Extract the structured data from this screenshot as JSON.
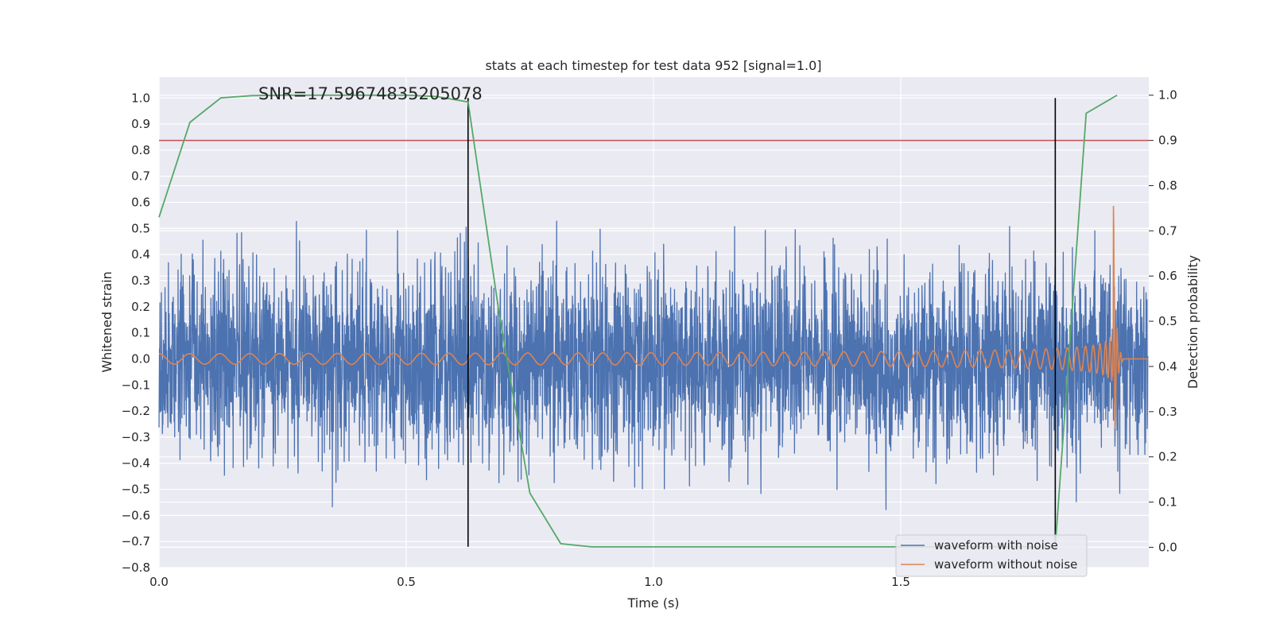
{
  "chart_data": {
    "type": "line",
    "title": "stats at each timestep for test data 952 [signal=1.0]",
    "annotation": "SNR=17.59674835205078",
    "xlabel": "Time (s)",
    "ylabel": "Whitened strain",
    "ylabel_right": "Detection probability",
    "xlim": [
      0.0,
      2.0
    ],
    "ylim": [
      -0.8,
      1.08
    ],
    "ylim_right": [
      -0.045,
      1.04
    ],
    "x_ticks": [
      0.0,
      0.5,
      1.0,
      1.5
    ],
    "x_tick_labels": [
      "0.0",
      "0.5",
      "1.0",
      "1.5"
    ],
    "y_ticks": [
      -0.8,
      -0.7,
      -0.6,
      -0.5,
      -0.4,
      -0.3,
      -0.2,
      -0.1,
      0.0,
      0.1,
      0.2,
      0.3,
      0.4,
      0.5,
      0.6,
      0.7,
      0.8,
      0.9,
      1.0
    ],
    "y_tick_labels": [
      "−0.8",
      "−0.7",
      "−0.6",
      "−0.5",
      "−0.4",
      "−0.3",
      "−0.2",
      "−0.1",
      "0.0",
      "0.1",
      "0.2",
      "0.3",
      "0.4",
      "0.5",
      "0.6",
      "0.7",
      "0.8",
      "0.9",
      "1.0"
    ],
    "y_right_ticks": [
      0.0,
      0.1,
      0.2,
      0.3,
      0.4,
      0.5,
      0.6,
      0.7,
      0.8,
      0.9,
      1.0
    ],
    "y_right_tick_labels": [
      "0.0",
      "0.1",
      "0.2",
      "0.3",
      "0.4",
      "0.5",
      "0.6",
      "0.7",
      "0.8",
      "0.9",
      "1.0"
    ],
    "grid": true,
    "legend_position": "lower-right",
    "series": [
      {
        "name": "waveform with noise",
        "color": "#4c72b0",
        "kind": "noise",
        "sample_rate": 2048,
        "duration": 2.0,
        "std": 0.18,
        "range": [
          -0.71,
          0.73
        ]
      },
      {
        "name": "waveform without noise",
        "color": "#dd8452",
        "kind": "chirp",
        "merger_time": 1.93,
        "base_amplitude": 0.02,
        "peak_amplitude": 0.62,
        "base_frequency": 16,
        "ringdown_end": 1.95
      },
      {
        "name": "",
        "color": "#55a868",
        "axis": "right",
        "x": [
          0.0,
          0.0625,
          0.125,
          0.1875,
          0.25,
          0.3125,
          0.375,
          0.4375,
          0.5,
          0.5625,
          0.625,
          0.6875,
          0.75,
          0.8125,
          0.875,
          0.9375,
          1.0,
          1.0625,
          1.125,
          1.1875,
          1.25,
          1.3125,
          1.375,
          1.4375,
          1.5,
          1.5625,
          1.625,
          1.6875,
          1.75,
          1.8125,
          1.875,
          1.9375
        ],
        "y": [
          0.73,
          0.94,
          0.994,
          0.999,
          1.0,
          1.0,
          1.0,
          1.0,
          1.0,
          0.997,
          0.985,
          0.52,
          0.12,
          0.008,
          0.001,
          0.001,
          0.001,
          0.001,
          0.001,
          0.001,
          0.001,
          0.001,
          0.001,
          0.001,
          0.001,
          0.001,
          0.001,
          0.001,
          0.001,
          0.001,
          0.96,
          1.0
        ]
      }
    ],
    "threshold_right": 0.9,
    "threshold_color": "#c44e52",
    "markers": [
      {
        "x": 0.625,
        "y_from": 1.0,
        "y_to": -0.72
      },
      {
        "x": 1.8125,
        "y_from": 1.0,
        "y_to": -0.72
      }
    ],
    "marker_color": "#000000"
  }
}
